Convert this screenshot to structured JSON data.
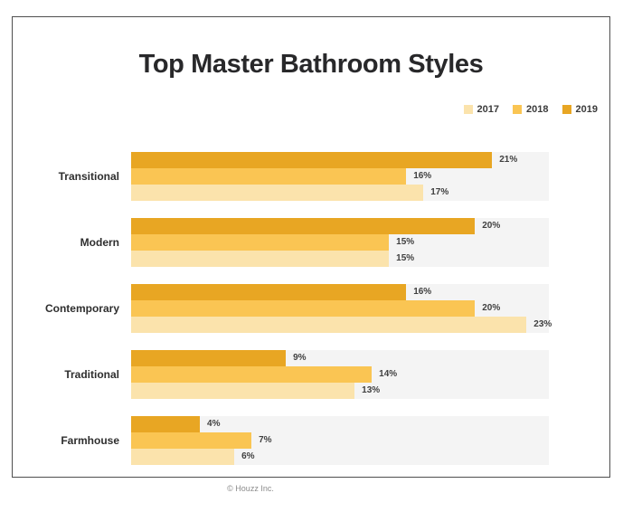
{
  "title": "Top Master Bathroom Styles",
  "footer": "© Houzz Inc.",
  "colors": {
    "series_2017": "#FBE3AC",
    "series_2018": "#FAC553",
    "series_2019": "#E8A623",
    "row_background": "#F4F4F4",
    "frame_border": "#4F4F4F",
    "title_text": "#28282A",
    "value_text": "#3F3F3F",
    "category_text": "#2E2E2E",
    "footer_text": "#8B8B8B"
  },
  "legend": [
    {
      "label": "2017",
      "color": "#FBE3AC"
    },
    {
      "label": "2018",
      "color": "#FAC553"
    },
    {
      "label": "2019",
      "color": "#E8A623"
    }
  ],
  "chart_data": {
    "type": "bar",
    "orientation": "horizontal",
    "title": "Top Master Bathroom Styles",
    "categories": [
      "Transitional",
      "Modern",
      "Contemporary",
      "Traditional",
      "Farmhouse"
    ],
    "series": [
      {
        "name": "2019",
        "color": "#E8A623",
        "values": [
          21,
          20,
          16,
          9,
          4
        ]
      },
      {
        "name": "2018",
        "color": "#FAC553",
        "values": [
          16,
          15,
          20,
          14,
          7
        ]
      },
      {
        "name": "2017",
        "color": "#FBE3AC",
        "values": [
          17,
          15,
          23,
          13,
          6
        ]
      }
    ],
    "bar_order_top_to_bottom": [
      "2019",
      "2018",
      "2017"
    ],
    "value_suffix": "%",
    "xlim": [
      0,
      24.3
    ],
    "data_labels": "outside-end",
    "legend_position": "top-right",
    "grid": false
  }
}
